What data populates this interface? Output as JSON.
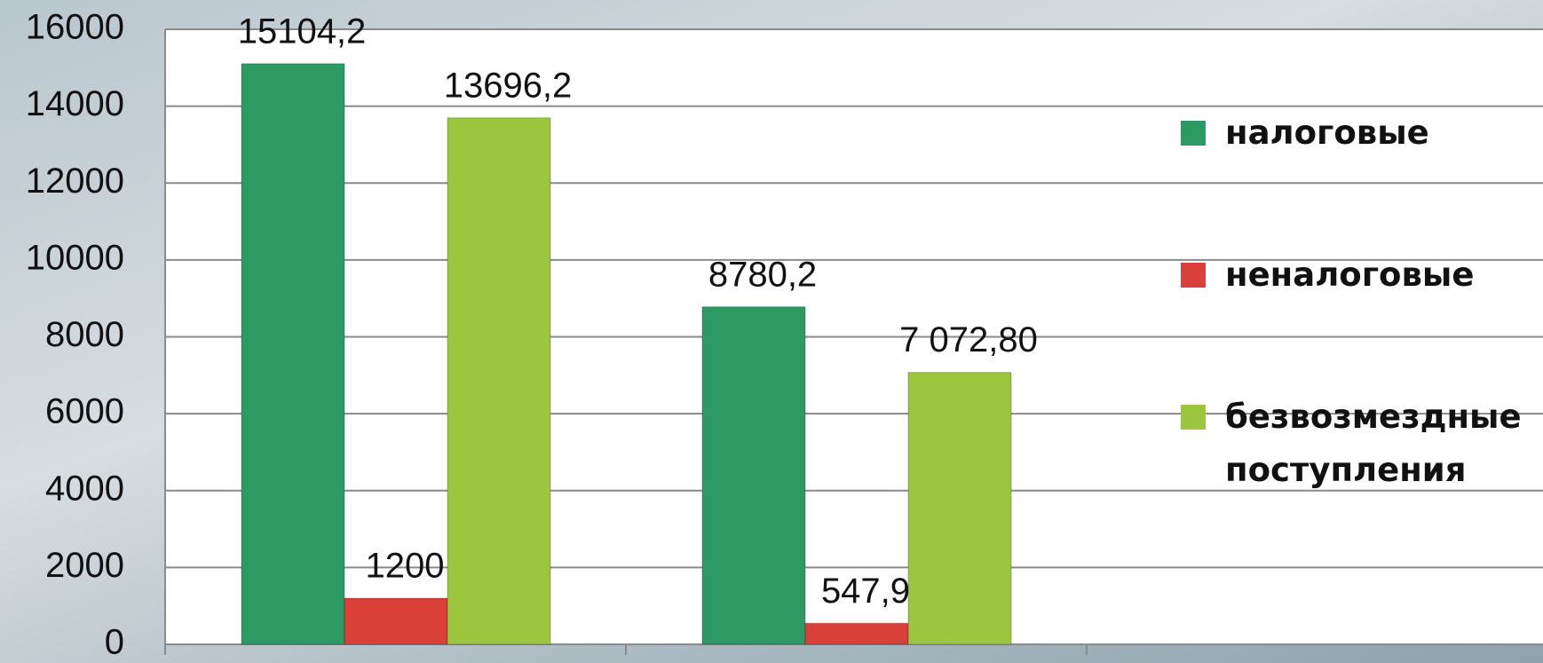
{
  "chart_data": {
    "type": "bar",
    "categories": [
      null,
      null
    ],
    "series": [
      {
        "name": "налоговые",
        "color": "#2e9a63",
        "values": [
          15104.2,
          8780.2
        ],
        "value_labels": [
          "15104,2",
          "8780,2"
        ]
      },
      {
        "name": "неналоговые",
        "color": "#d9403a",
        "values": [
          1200,
          547.9
        ],
        "value_labels": [
          "1200",
          "547,9"
        ]
      },
      {
        "name": "безвозмездные поступления",
        "color": "#9bc63e",
        "values": [
          13696.2,
          7072.8
        ],
        "value_labels": [
          "13696,2",
          "7 072,80"
        ]
      }
    ],
    "ylim": [
      0,
      16000
    ],
    "yticks": [
      0,
      2000,
      4000,
      6000,
      8000,
      10000,
      12000,
      14000,
      16000
    ],
    "grid": true,
    "legend": "right"
  }
}
